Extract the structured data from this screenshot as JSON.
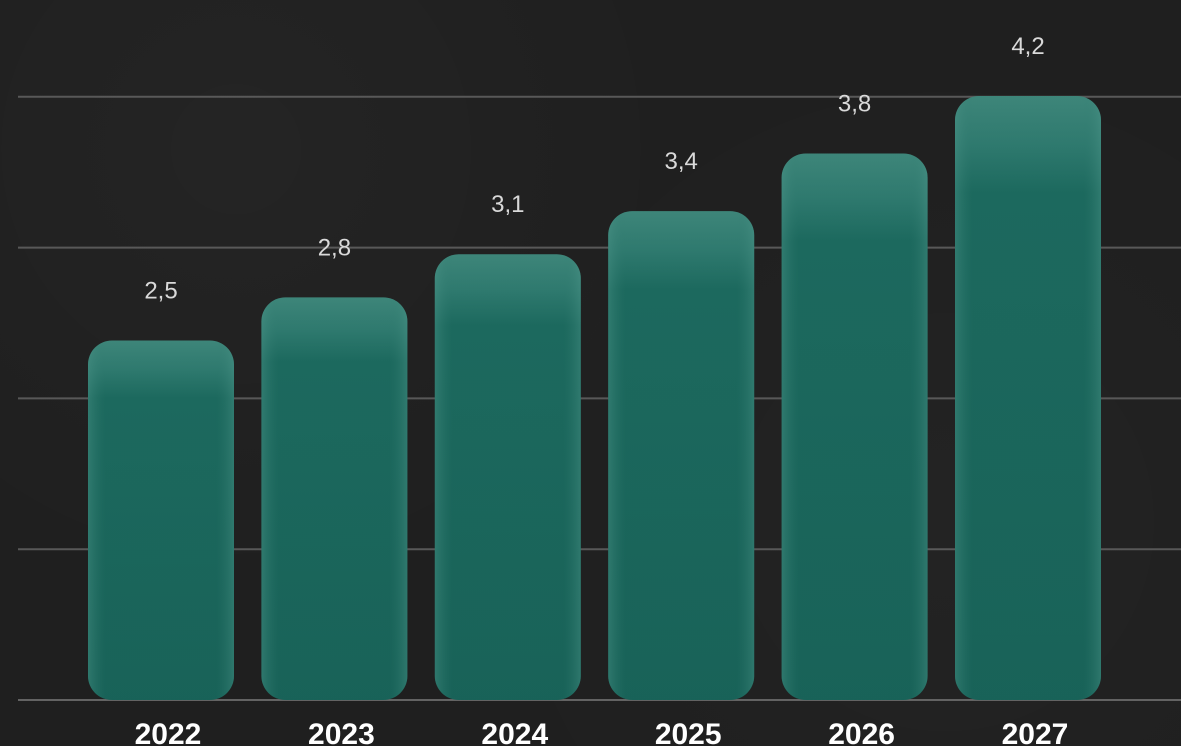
{
  "chart_data": {
    "type": "bar",
    "categories": [
      "2022",
      "2023",
      "2024",
      "2025",
      "2026",
      "2027"
    ],
    "values": [
      2.5,
      2.8,
      3.1,
      3.4,
      3.8,
      4.2
    ],
    "value_labels": [
      "2,5",
      "2,8",
      "3,1",
      "3,4",
      "3,8",
      "4,2"
    ],
    "grid": true,
    "colors": {
      "background": "#1f1f1f",
      "bar_fill": "#176157",
      "bar_edge": "#3f877b",
      "label_color": "#d9d9d9",
      "tick_color": "#ffffff",
      "grid_color": "#6b6b6b"
    }
  }
}
